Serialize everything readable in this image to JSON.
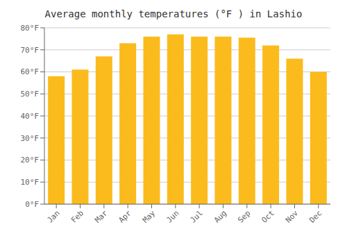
{
  "chart_data": {
    "type": "bar",
    "title": "Average monthly temperatures (°F ) in Lashio",
    "categories": [
      "Jan",
      "Feb",
      "Mar",
      "Apr",
      "May",
      "Jun",
      "Jul",
      "Aug",
      "Sep",
      "Oct",
      "Nov",
      "Dec"
    ],
    "values": [
      58,
      61,
      67,
      73,
      76,
      77,
      76,
      76,
      75.5,
      72,
      66,
      60
    ],
    "color": "#FBBB1C",
    "ylim": [
      0,
      80
    ],
    "yticks": [
      {
        "value": 0,
        "label": "0°F"
      },
      {
        "value": 10,
        "label": "10°F"
      },
      {
        "value": 20,
        "label": "20°F"
      },
      {
        "value": 30,
        "label": "30°F"
      },
      {
        "value": 40,
        "label": "40°F"
      },
      {
        "value": 50,
        "label": "50°F"
      },
      {
        "value": 60,
        "label": "60°F"
      },
      {
        "value": 70,
        "label": "70°F"
      },
      {
        "value": 80,
        "label": "80°F"
      }
    ],
    "grid": true
  }
}
